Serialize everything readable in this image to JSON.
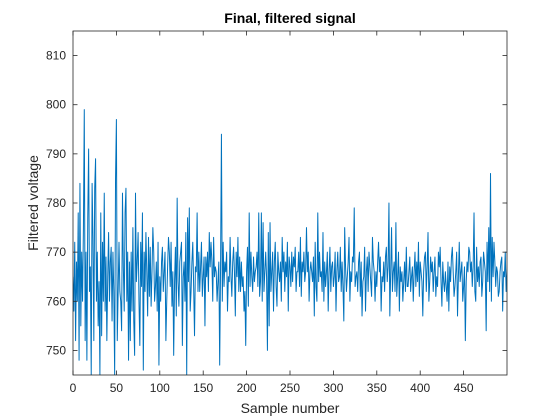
{
  "chart_data": {
    "type": "line",
    "title": "Final, filtered signal",
    "xlabel": "Sample number",
    "ylabel": "Filtered voltage",
    "xlim": [
      0,
      500
    ],
    "ylim": [
      745,
      815
    ],
    "xticks": [
      0,
      50,
      100,
      150,
      200,
      250,
      300,
      350,
      400,
      450
    ],
    "xtick_labels": [
      "0",
      "50",
      "100",
      "150",
      "200",
      "250",
      "300",
      "350",
      "400",
      "450"
    ],
    "yticks": [
      750,
      760,
      770,
      780,
      790,
      800,
      810
    ],
    "ytick_labels": [
      "750",
      "760",
      "770",
      "780",
      "790",
      "800",
      "810"
    ],
    "grid": false,
    "series": [
      {
        "color": "#0072bd",
        "values": [
          765,
          758,
          772,
          752,
          768,
          760,
          778,
          748,
          784,
          755,
          770,
          760,
          775,
          799,
          752,
          770,
          748,
          777,
          791,
          762,
          767,
          745,
          784,
          773,
          752,
          783,
          789,
          760,
          770,
          755,
          764,
          745,
          778,
          753,
          772,
          760,
          782,
          758,
          769,
          752,
          765,
          774,
          760,
          768,
          771,
          756,
          770,
          762,
          745,
          785,
          797,
          752,
          762,
          772,
          762,
          760,
          754,
          782,
          767,
          758,
          778,
          783,
          760,
          770,
          748,
          768,
          752,
          770,
          758,
          775,
          756,
          749,
          782,
          764,
          768,
          774,
          760,
          751,
          772,
          763,
          778,
          746,
          770,
          762,
          774,
          766,
          757,
          773,
          761,
          771,
          759,
          766,
          775,
          770,
          760,
          763,
          768,
          758,
          772,
          747,
          765,
          760,
          768,
          771,
          762,
          766,
          770,
          752,
          760,
          767,
          773,
          770,
          763,
          772,
          759,
          766,
          749,
          764,
          771,
          757,
          781,
          764,
          759,
          768,
          770,
          772,
          751,
          765,
          768,
          760,
          774,
          745,
          777,
          764,
          779,
          758,
          762,
          768,
          772,
          763,
          753,
          767,
          766,
          778,
          762,
          770,
          762,
          767,
          772,
          761,
          765,
          769,
          755,
          769,
          765,
          770,
          762,
          774,
          767,
          772,
          768,
          760,
          773,
          765,
          767,
          766,
          760,
          764,
          768,
          747,
          767,
          794,
          760,
          772,
          763,
          768,
          766,
          770,
          758,
          765,
          764,
          773,
          765,
          761,
          768,
          771,
          766,
          757,
          770,
          765,
          773,
          762,
          769,
          762,
          768,
          763,
          765,
          758,
          762,
          751,
          766,
          771,
          759,
          778,
          763,
          770,
          765,
          762,
          769,
          764,
          766,
          767,
          770,
          763,
          778,
          761,
          764,
          778,
          760,
          776,
          762,
          766,
          770,
          765,
          750,
          774,
          755,
          776,
          762,
          766,
          770,
          758,
          768,
          772,
          763,
          759,
          770,
          766,
          764,
          768,
          760,
          773,
          766,
          770,
          762,
          768,
          765,
          772,
          758,
          769,
          767,
          763,
          770,
          764,
          769,
          767,
          771,
          762,
          766,
          766,
          770,
          763,
          773,
          761,
          768,
          766,
          770,
          764,
          766,
          775,
          766,
          770,
          760,
          766,
          768,
          766,
          764,
          769,
          757,
          772,
          763,
          760,
          778,
          764,
          770,
          765,
          766,
          762,
          774,
          760,
          768,
          763,
          766,
          770,
          758,
          766,
          771,
          762,
          767,
          768,
          763,
          765,
          770,
          758,
          766,
          770,
          764,
          765,
          771,
          762,
          768,
          763,
          756,
          775,
          767,
          762,
          765,
          768,
          773,
          760,
          766,
          764,
          769,
          768,
          779,
          763,
          765,
          766,
          762,
          768,
          770,
          761,
          768,
          757,
          764,
          765,
          771,
          758,
          766,
          769,
          762,
          770,
          767,
          764,
          761,
          773,
          768,
          766,
          760,
          766,
          763,
          768,
          772,
          766,
          769,
          758,
          765,
          764,
          768,
          762,
          769,
          771,
          764,
          767,
          780,
          757,
          766,
          775,
          762,
          766,
          768,
          762,
          776,
          761,
          765,
          770,
          758,
          767,
          764,
          766,
          760,
          764,
          768,
          762,
          771,
          763,
          763,
          766,
          769,
          762,
          765,
          767,
          760,
          766,
          770,
          763,
          768,
          764,
          772,
          761,
          768,
          766,
          764,
          757,
          766,
          769,
          770,
          762,
          767,
          774,
          760,
          764,
          769,
          766,
          768,
          762,
          766,
          769,
          761,
          765,
          763,
          770,
          767,
          771,
          764,
          759,
          768,
          764,
          762,
          766,
          763,
          760,
          768,
          758,
          767,
          764,
          769,
          771,
          766,
          761,
          763,
          766,
          770,
          757,
          765,
          772,
          764,
          766,
          768,
          760,
          763,
          767,
          752,
          764,
          768,
          766,
          771,
          770,
          766,
          768,
          763,
          767,
          778,
          762,
          760,
          771,
          764,
          767,
          763,
          768,
          769,
          761,
          764,
          770,
          768,
          766,
          754,
          772,
          764,
          775,
          762,
          786,
          760,
          773,
          765,
          772,
          768,
          763,
          767,
          766,
          761,
          762,
          766,
          768,
          769,
          758,
          766,
          765,
          770,
          762,
          766,
          767,
          770,
          764,
          771,
          764,
          757,
          777,
          762,
          769,
          757,
          766,
          768,
          766,
          763,
          771,
          766,
          764,
          769,
          760,
          761,
          768,
          763,
          766
        ]
      }
    ]
  }
}
